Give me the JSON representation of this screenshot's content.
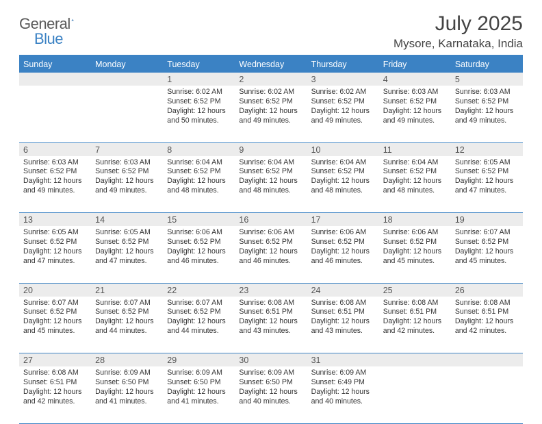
{
  "logo": {
    "text1": "General",
    "text2": "Blue"
  },
  "title": "July 2025",
  "location": "Mysore, Karnataka, India",
  "header_bg": "#3b82c4",
  "header_fg": "#ffffff",
  "daynum_bg": "#ececec",
  "border_color": "#3b82c4",
  "dayNames": [
    "Sunday",
    "Monday",
    "Tuesday",
    "Wednesday",
    "Thursday",
    "Friday",
    "Saturday"
  ],
  "weeks": [
    [
      null,
      null,
      {
        "n": "1",
        "sr": "6:02 AM",
        "ss": "6:52 PM",
        "dl": "12 hours and 50 minutes."
      },
      {
        "n": "2",
        "sr": "6:02 AM",
        "ss": "6:52 PM",
        "dl": "12 hours and 49 minutes."
      },
      {
        "n": "3",
        "sr": "6:02 AM",
        "ss": "6:52 PM",
        "dl": "12 hours and 49 minutes."
      },
      {
        "n": "4",
        "sr": "6:03 AM",
        "ss": "6:52 PM",
        "dl": "12 hours and 49 minutes."
      },
      {
        "n": "5",
        "sr": "6:03 AM",
        "ss": "6:52 PM",
        "dl": "12 hours and 49 minutes."
      }
    ],
    [
      {
        "n": "6",
        "sr": "6:03 AM",
        "ss": "6:52 PM",
        "dl": "12 hours and 49 minutes."
      },
      {
        "n": "7",
        "sr": "6:03 AM",
        "ss": "6:52 PM",
        "dl": "12 hours and 49 minutes."
      },
      {
        "n": "8",
        "sr": "6:04 AM",
        "ss": "6:52 PM",
        "dl": "12 hours and 48 minutes."
      },
      {
        "n": "9",
        "sr": "6:04 AM",
        "ss": "6:52 PM",
        "dl": "12 hours and 48 minutes."
      },
      {
        "n": "10",
        "sr": "6:04 AM",
        "ss": "6:52 PM",
        "dl": "12 hours and 48 minutes."
      },
      {
        "n": "11",
        "sr": "6:04 AM",
        "ss": "6:52 PM",
        "dl": "12 hours and 48 minutes."
      },
      {
        "n": "12",
        "sr": "6:05 AM",
        "ss": "6:52 PM",
        "dl": "12 hours and 47 minutes."
      }
    ],
    [
      {
        "n": "13",
        "sr": "6:05 AM",
        "ss": "6:52 PM",
        "dl": "12 hours and 47 minutes."
      },
      {
        "n": "14",
        "sr": "6:05 AM",
        "ss": "6:52 PM",
        "dl": "12 hours and 47 minutes."
      },
      {
        "n": "15",
        "sr": "6:06 AM",
        "ss": "6:52 PM",
        "dl": "12 hours and 46 minutes."
      },
      {
        "n": "16",
        "sr": "6:06 AM",
        "ss": "6:52 PM",
        "dl": "12 hours and 46 minutes."
      },
      {
        "n": "17",
        "sr": "6:06 AM",
        "ss": "6:52 PM",
        "dl": "12 hours and 46 minutes."
      },
      {
        "n": "18",
        "sr": "6:06 AM",
        "ss": "6:52 PM",
        "dl": "12 hours and 45 minutes."
      },
      {
        "n": "19",
        "sr": "6:07 AM",
        "ss": "6:52 PM",
        "dl": "12 hours and 45 minutes."
      }
    ],
    [
      {
        "n": "20",
        "sr": "6:07 AM",
        "ss": "6:52 PM",
        "dl": "12 hours and 45 minutes."
      },
      {
        "n": "21",
        "sr": "6:07 AM",
        "ss": "6:52 PM",
        "dl": "12 hours and 44 minutes."
      },
      {
        "n": "22",
        "sr": "6:07 AM",
        "ss": "6:52 PM",
        "dl": "12 hours and 44 minutes."
      },
      {
        "n": "23",
        "sr": "6:08 AM",
        "ss": "6:51 PM",
        "dl": "12 hours and 43 minutes."
      },
      {
        "n": "24",
        "sr": "6:08 AM",
        "ss": "6:51 PM",
        "dl": "12 hours and 43 minutes."
      },
      {
        "n": "25",
        "sr": "6:08 AM",
        "ss": "6:51 PM",
        "dl": "12 hours and 42 minutes."
      },
      {
        "n": "26",
        "sr": "6:08 AM",
        "ss": "6:51 PM",
        "dl": "12 hours and 42 minutes."
      }
    ],
    [
      {
        "n": "27",
        "sr": "6:08 AM",
        "ss": "6:51 PM",
        "dl": "12 hours and 42 minutes."
      },
      {
        "n": "28",
        "sr": "6:09 AM",
        "ss": "6:50 PM",
        "dl": "12 hours and 41 minutes."
      },
      {
        "n": "29",
        "sr": "6:09 AM",
        "ss": "6:50 PM",
        "dl": "12 hours and 41 minutes."
      },
      {
        "n": "30",
        "sr": "6:09 AM",
        "ss": "6:50 PM",
        "dl": "12 hours and 40 minutes."
      },
      {
        "n": "31",
        "sr": "6:09 AM",
        "ss": "6:49 PM",
        "dl": "12 hours and 40 minutes."
      },
      null,
      null
    ]
  ],
  "labels": {
    "sunrise": "Sunrise:",
    "sunset": "Sunset:",
    "daylight": "Daylight:"
  }
}
